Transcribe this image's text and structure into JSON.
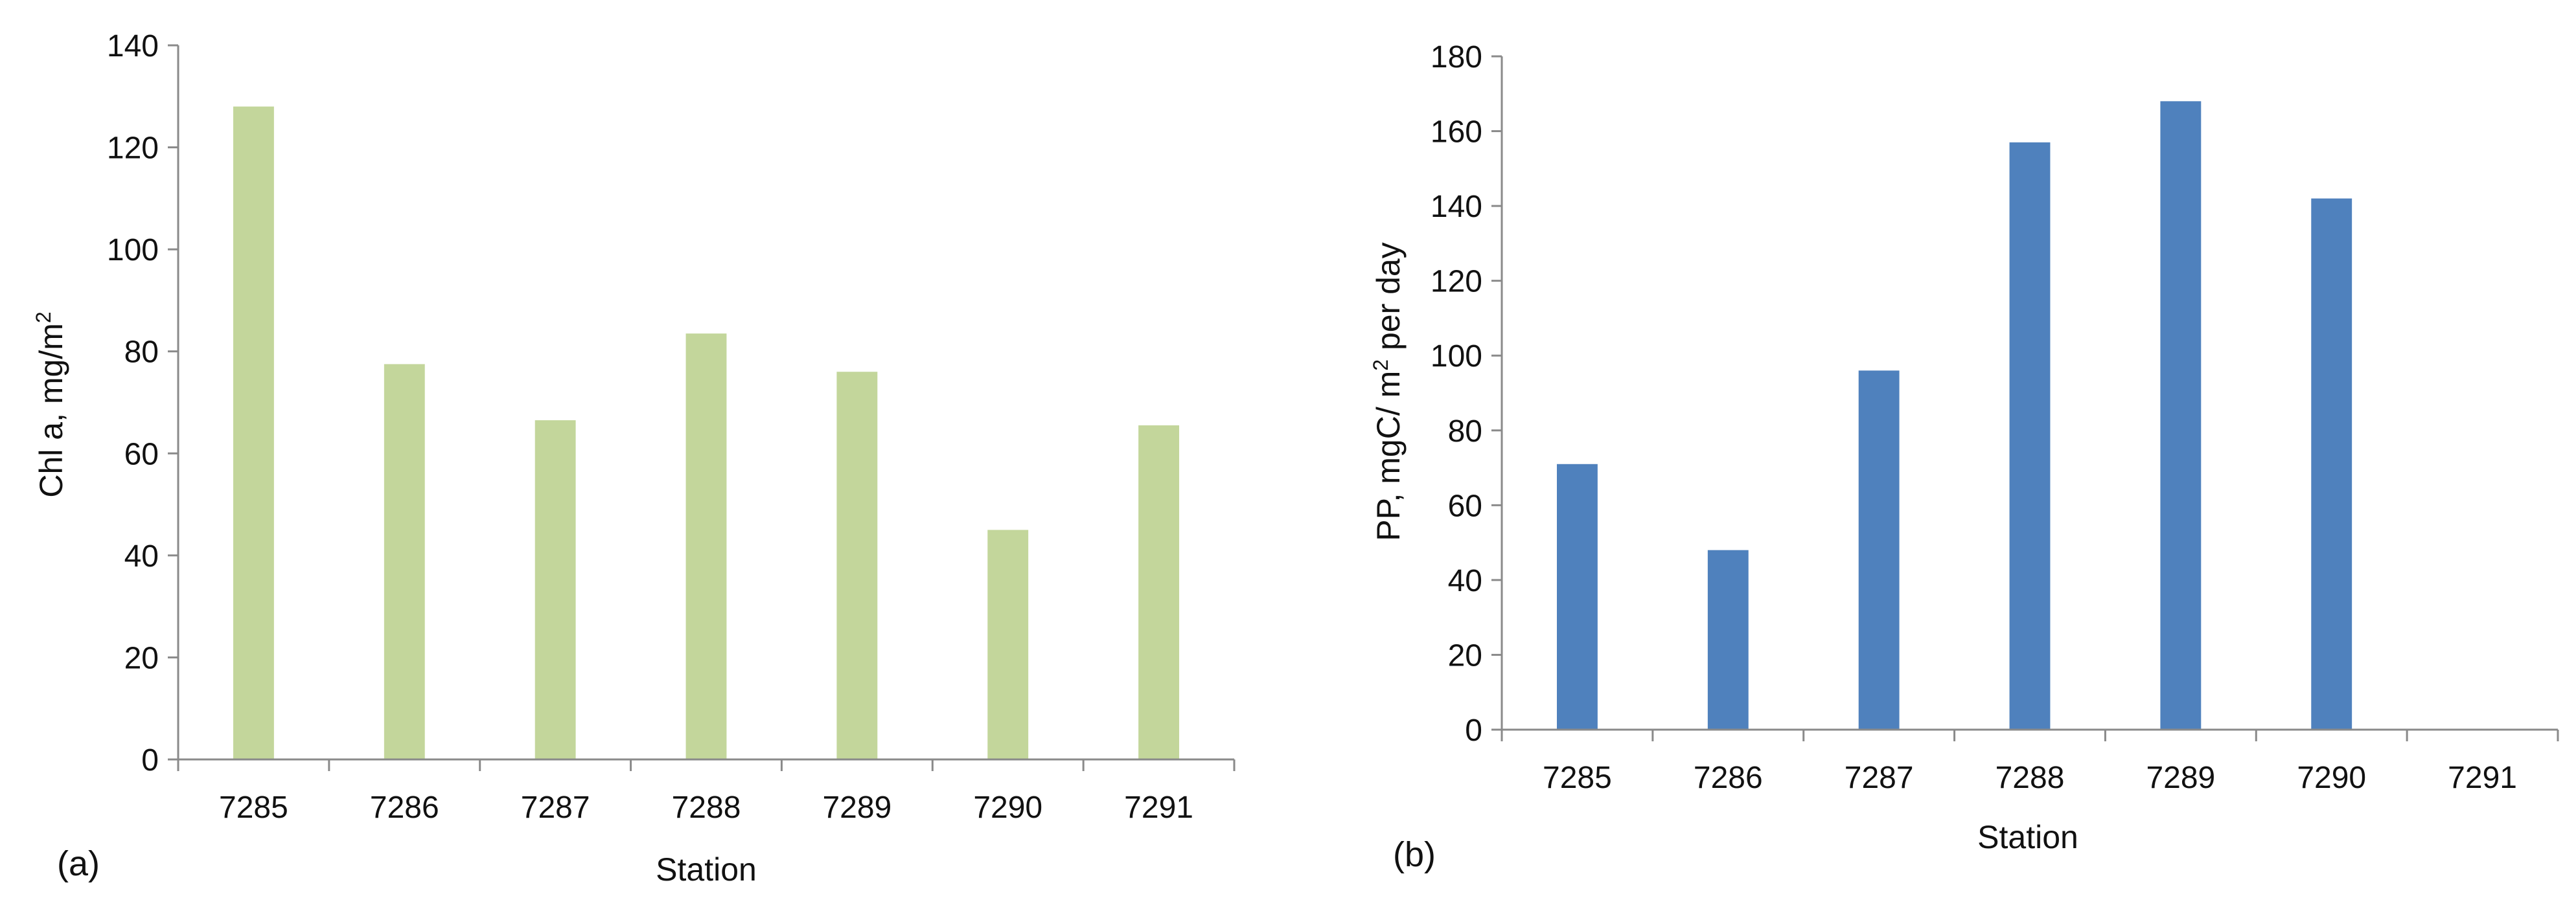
{
  "chart_data": [
    {
      "type": "bar",
      "panel_label": "(a)",
      "title": "",
      "xlabel": "Station",
      "ylabel_base": "Chl a, mg/m",
      "ylabel_sup": "2",
      "categories": [
        "7285",
        "7286",
        "7287",
        "7288",
        "7289",
        "7290",
        "7291"
      ],
      "values": [
        128,
        77.5,
        66.5,
        83.5,
        76,
        45,
        65.5
      ],
      "ylim": [
        0,
        140
      ],
      "yticks": [
        0,
        20,
        40,
        60,
        80,
        100,
        120,
        140
      ],
      "yticklabels": [
        "0",
        "20",
        "40",
        "60",
        "80",
        "100",
        "120",
        "140"
      ],
      "color": "#c3d69b",
      "grid": false,
      "legend": "none"
    },
    {
      "type": "bar",
      "panel_label": "(b)",
      "title": "",
      "xlabel": "Station",
      "ylabel_pre": "PP, mgC/ m",
      "ylabel_sup": "2",
      "ylabel_post": " per day",
      "categories": [
        "7285",
        "7286",
        "7287",
        "7288",
        "7289",
        "7290",
        "7291"
      ],
      "values": [
        71,
        48,
        96,
        157,
        168,
        142,
        null
      ],
      "ylim": [
        0,
        180
      ],
      "yticks": [
        0,
        20,
        40,
        60,
        80,
        100,
        120,
        140,
        160,
        180
      ],
      "yticklabels": [
        "0",
        "20",
        "40",
        "60",
        "80",
        "100",
        "120",
        "140",
        "160",
        "180"
      ],
      "color": "#4f81bd",
      "grid": false,
      "legend": "none"
    }
  ]
}
